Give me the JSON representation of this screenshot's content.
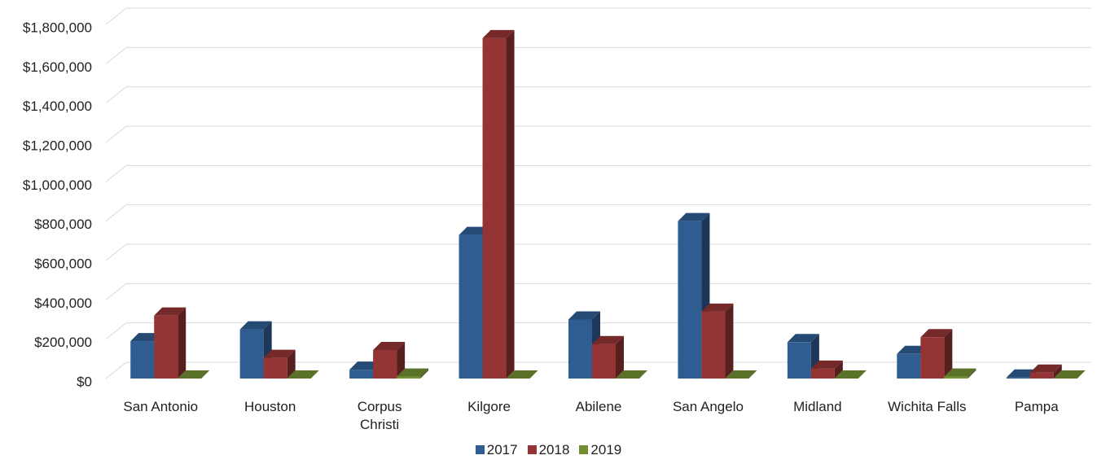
{
  "chart_data": {
    "type": "bar3d",
    "categories": [
      "San Antonio",
      "Houston",
      "Corpus Christi",
      "Kilgore",
      "Abilene",
      "San Angelo",
      "Midland",
      "Wichita Falls",
      "Pampa"
    ],
    "series": [
      {
        "name": "2017",
        "color": "#2f5d91",
        "values": [
          190000,
          250000,
          45000,
          730000,
          300000,
          800000,
          185000,
          125000,
          5000
        ]
      },
      {
        "name": "2018",
        "color": "#943434",
        "values": [
          320000,
          105000,
          145000,
          1730000,
          175000,
          340000,
          50000,
          210000,
          30000
        ]
      },
      {
        "name": "2019",
        "color": "#718f32",
        "values": [
          0,
          0,
          10000,
          0,
          0,
          0,
          0,
          10000,
          0
        ]
      }
    ],
    "ylim": [
      0,
      1800000
    ],
    "yticks": [
      {
        "value": 0,
        "label": "$0"
      },
      {
        "value": 200000,
        "label": "$200,000"
      },
      {
        "value": 400000,
        "label": "$400,000"
      },
      {
        "value": 600000,
        "label": "$600,000"
      },
      {
        "value": 800000,
        "label": "$800,000"
      },
      {
        "value": 1000000,
        "label": "$1,000,000"
      },
      {
        "value": 1200000,
        "label": "$1,200,000"
      },
      {
        "value": 1400000,
        "label": "$1,400,000"
      },
      {
        "value": 1600000,
        "label": "$1,600,000"
      },
      {
        "value": 1800000,
        "label": "$1,800,000"
      }
    ],
    "grid": true,
    "legend": "bottom"
  }
}
